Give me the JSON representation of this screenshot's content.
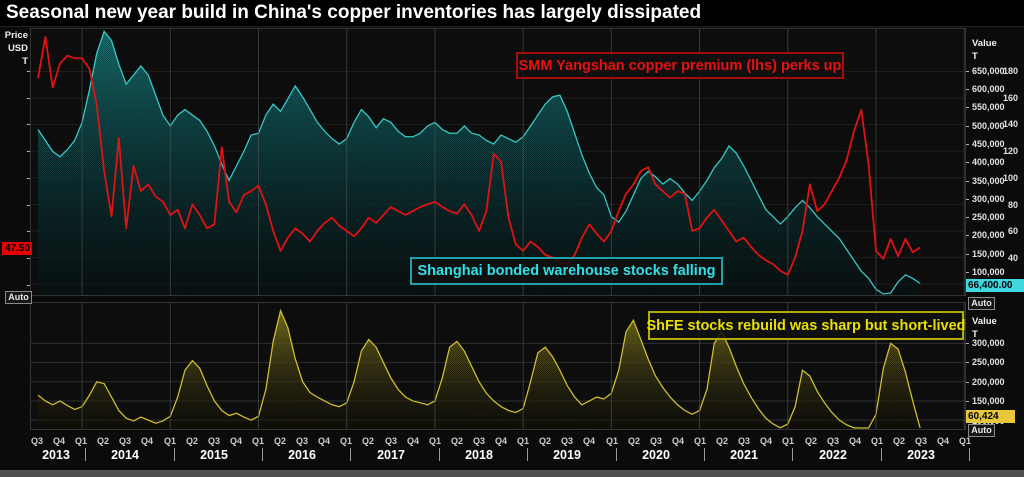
{
  "window": {
    "title": "Seasonal new year build in China's copper inventories has largely dissipated"
  },
  "annotations": {
    "premium": {
      "text": "SMM Yangshan copper premium (lhs) perks up",
      "color": "#e81010"
    },
    "bonded": {
      "text": "Shanghai bonded warehouse stocks falling",
      "color": "#2ee0e8"
    },
    "shfe": {
      "text": "ShFE stocks rebuild was sharp but short-lived",
      "color": "#e8e000"
    }
  },
  "axes": {
    "left_price": {
      "header_lines": [
        "Price",
        "USD",
        "T"
      ],
      "tick_values": [
        180,
        160,
        140,
        120,
        100,
        80,
        60,
        40,
        20
      ],
      "tick_labels": [
        "180",
        "160",
        "140",
        "120",
        "100",
        "80",
        "60",
        "40",
        "20"
      ],
      "current_value": "47.50",
      "current_value_num": 47.5,
      "tag_color": "#e60000",
      "auto_label": "Auto"
    },
    "right_value_top": {
      "header_lines": [
        "Value",
        "T"
      ],
      "tick_values": [
        650000,
        600000,
        550000,
        500000,
        450000,
        400000,
        350000,
        300000,
        250000,
        200000,
        150000,
        100000
      ],
      "tick_labels": [
        "650,000",
        "600,000",
        "550,000",
        "500,000",
        "450,000",
        "400,000",
        "350,000",
        "300,000",
        "250,000",
        "200,000",
        "150,000",
        "100,000"
      ],
      "current_value": "66,400.00",
      "current_value_num": 66400,
      "tag_color": "#40d8e0",
      "auto_label": "Auto"
    },
    "right_value_bottom": {
      "header_lines": [
        "Value",
        "T"
      ],
      "tick_values": [
        300000,
        250000,
        200000,
        150000,
        100000
      ],
      "tick_labels": [
        "300,000",
        "250,000",
        "200,000",
        "150,000",
        "100,000"
      ],
      "current_value": "60,424",
      "current_value_num": 60424,
      "tag_color": "#e8c73d",
      "auto_label": "Auto"
    },
    "x_time": {
      "quarter_labels": [
        "Q3",
        "Q4",
        "Q1",
        "Q2",
        "Q3",
        "Q4",
        "Q1",
        "Q2",
        "Q3",
        "Q4",
        "Q1",
        "Q2",
        "Q3",
        "Q4",
        "Q1",
        "Q2",
        "Q3",
        "Q4",
        "Q1",
        "Q2",
        "Q3",
        "Q4",
        "Q1",
        "Q2",
        "Q3",
        "Q4",
        "Q1",
        "Q2",
        "Q3",
        "Q4",
        "Q1",
        "Q2",
        "Q3",
        "Q4",
        "Q1",
        "Q2",
        "Q3",
        "Q4",
        "Q1",
        "Q2",
        "Q3",
        "Q4",
        "Q1"
      ],
      "year_labels": [
        "2013",
        "2014",
        "2015",
        "2016",
        "2017",
        "2018",
        "2019",
        "2020",
        "2021",
        "2022",
        "2023"
      ]
    }
  },
  "chart_data": [
    {
      "type": "area",
      "panel": "top",
      "x_start": 2013.5,
      "x_interval_years": 0.0833333,
      "x_range": [
        2013.421,
        2024.009
      ],
      "left_ylim": [
        11.8,
        212
      ],
      "right_ylim": [
        34400,
        766900
      ],
      "grid": true,
      "series": [
        {
          "name": "SMM Yangshan copper premium (lhs)",
          "short": "premium",
          "axis": "left",
          "style": "line",
          "color": "#e01212",
          "unit": "USD/T",
          "last_value": 47.5,
          "values": [
            175,
            206,
            168,
            186,
            192,
            190,
            190,
            182,
            155,
            105,
            71,
            130,
            62,
            109,
            90,
            95,
            86,
            82,
            72,
            76,
            62,
            80,
            72,
            62,
            65,
            123,
            82,
            74,
            87,
            90,
            94,
            80,
            60,
            45,
            55,
            62,
            58,
            52,
            60,
            66,
            70,
            64,
            60,
            56,
            62,
            70,
            66,
            72,
            78,
            75,
            72,
            75,
            78,
            80,
            82,
            78,
            75,
            73,
            80,
            72,
            60,
            75,
            118,
            112,
            70,
            50,
            45,
            52,
            48,
            42,
            40,
            37,
            35,
            42,
            55,
            65,
            58,
            52,
            60,
            75,
            88,
            95,
            105,
            108,
            95,
            90,
            85,
            90,
            88,
            60,
            62,
            70,
            76,
            68,
            60,
            52,
            55,
            48,
            42,
            38,
            35,
            30,
            27,
            40,
            60,
            95,
            75,
            80,
            90,
            100,
            113,
            135,
            151,
            110,
            45,
            39,
            54,
            41,
            54,
            44,
            47.5
          ]
        },
        {
          "name": "Shanghai bonded warehouse copper stocks",
          "short": "bonded",
          "axis": "right",
          "style": "area",
          "color": "#39c7c7",
          "unit": "T",
          "last_value": 66400,
          "values": [
            490000,
            460000,
            430000,
            415000,
            435000,
            460000,
            510000,
            600000,
            700000,
            760000,
            735000,
            670000,
            615000,
            640000,
            665000,
            640000,
            585000,
            530000,
            500000,
            530000,
            545000,
            530000,
            515000,
            485000,
            445000,
            395000,
            350000,
            390000,
            430000,
            475000,
            480000,
            530000,
            560000,
            540000,
            575000,
            610000,
            580000,
            545000,
            510000,
            485000,
            465000,
            450000,
            465000,
            510000,
            545000,
            525000,
            495000,
            520000,
            510000,
            485000,
            470000,
            470000,
            480000,
            500000,
            510000,
            490000,
            480000,
            480000,
            500000,
            480000,
            475000,
            460000,
            450000,
            475000,
            465000,
            455000,
            470000,
            500000,
            530000,
            560000,
            580000,
            585000,
            540000,
            480000,
            420000,
            370000,
            330000,
            310000,
            250000,
            235000,
            265000,
            310000,
            355000,
            375000,
            360000,
            340000,
            355000,
            340000,
            315000,
            295000,
            320000,
            350000,
            385000,
            410000,
            445000,
            425000,
            390000,
            350000,
            310000,
            270000,
            250000,
            230000,
            250000,
            275000,
            295000,
            275000,
            250000,
            230000,
            210000,
            190000,
            160000,
            130000,
            100000,
            80000,
            50000,
            30000,
            40000,
            70000,
            90000,
            80000,
            66400
          ]
        }
      ]
    },
    {
      "type": "area",
      "panel": "bottom",
      "x_start": 2013.5,
      "x_interval_years": 0.0833333,
      "x_range": [
        2013.421,
        2024.009
      ],
      "right_ylim": [
        76900,
        405000
      ],
      "grid": true,
      "series": [
        {
          "name": "ShFE copper stocks",
          "short": "shfe",
          "axis": "right",
          "style": "area",
          "color": "#cdbd32",
          "unit": "T",
          "last_value": 60424,
          "values": [
            165000,
            150000,
            140000,
            150000,
            138000,
            128000,
            135000,
            165000,
            200000,
            195000,
            160000,
            125000,
            105000,
            98000,
            108000,
            100000,
            92000,
            98000,
            110000,
            160000,
            230000,
            255000,
            235000,
            190000,
            150000,
            125000,
            112000,
            118000,
            108000,
            100000,
            110000,
            180000,
            305000,
            385000,
            340000,
            260000,
            200000,
            172000,
            160000,
            150000,
            140000,
            135000,
            145000,
            200000,
            280000,
            310000,
            290000,
            250000,
            210000,
            180000,
            160000,
            150000,
            145000,
            140000,
            150000,
            210000,
            290000,
            305000,
            280000,
            240000,
            200000,
            170000,
            150000,
            135000,
            125000,
            120000,
            130000,
            200000,
            275000,
            290000,
            265000,
            230000,
            190000,
            160000,
            140000,
            150000,
            160000,
            155000,
            170000,
            230000,
            330000,
            360000,
            310000,
            260000,
            215000,
            185000,
            160000,
            140000,
            125000,
            115000,
            125000,
            180000,
            300000,
            330000,
            290000,
            240000,
            195000,
            160000,
            130000,
            105000,
            90000,
            80000,
            90000,
            135000,
            230000,
            215000,
            175000,
            145000,
            120000,
            100000,
            88000,
            80000,
            72000,
            78000,
            115000,
            235000,
            300000,
            285000,
            225000,
            150000,
            60424
          ]
        }
      ]
    }
  ]
}
